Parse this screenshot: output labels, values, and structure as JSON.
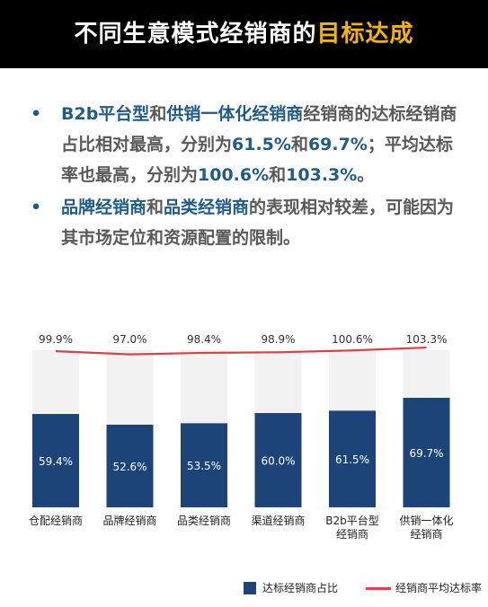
{
  "header": {
    "title_main": "不同生意模式经销商的",
    "title_highlight": "目标达成"
  },
  "bullets": {
    "b1": {
      "s1": "B2b平台型",
      "s2": "和",
      "s3": "供销一体化经销商",
      "s4": "经销商的达标经销商占比相对最高，分别为",
      "s5": "61.5%",
      "s6": "和",
      "s7": "69.7%",
      "s8": "；平均达标率也最高，分别为",
      "s9": "100.6%",
      "s10": "和",
      "s11": "103.3%",
      "s12": "。"
    },
    "b2": {
      "s1": "品牌经销商",
      "s2": "和",
      "s3": "品类经销商",
      "s4": "的表现相对较差，可能因为其市场定位和资源配置的限制。"
    },
    "bullet_glyph": "•"
  },
  "colors": {
    "bar": "#1c4479",
    "bar_bg": "#f2f2f2",
    "line": "#d94246",
    "accent": "#1f5c86",
    "highlight": "#f5b400"
  },
  "chart_data": {
    "type": "bar",
    "categories": [
      "仓配经销商",
      "品牌经销商",
      "品类经销商",
      "渠道经销商",
      "B2b平台型\n经销商",
      "供销一体化\n经销商"
    ],
    "series": [
      {
        "name": "达标经销商占比",
        "type": "bar",
        "values": [
          59.4,
          52.6,
          53.5,
          60.0,
          61.5,
          69.7
        ],
        "labels": [
          "59.4%",
          "52.6%",
          "53.5%",
          "60.0%",
          "61.5%",
          "69.7%"
        ]
      },
      {
        "name": "经销商平均达标率",
        "type": "line",
        "values": [
          99.9,
          97.0,
          98.4,
          98.9,
          100.6,
          103.3
        ],
        "labels": [
          "99.9%",
          "97.0%",
          "98.4%",
          "98.9%",
          "100.6%",
          "103.3%"
        ]
      }
    ],
    "ylim": [
      0,
      100
    ],
    "legend": "bottom-right",
    "grid": false
  }
}
